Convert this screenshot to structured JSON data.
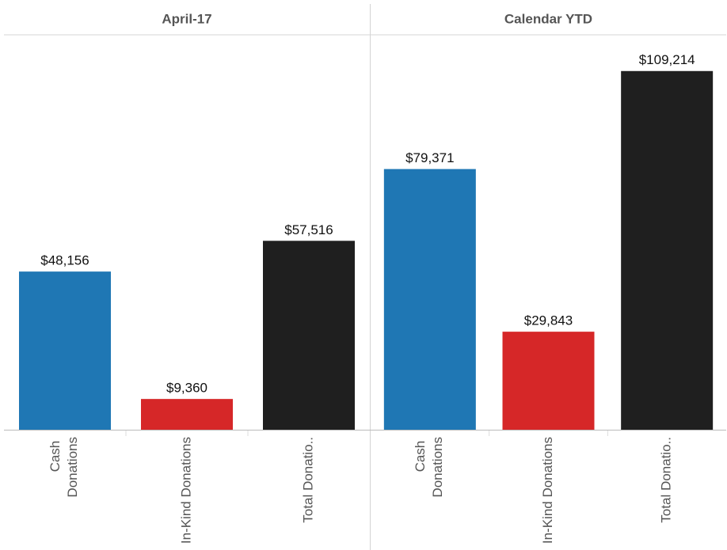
{
  "chart_data": [
    {
      "type": "bar",
      "title": "April-17",
      "categories": [
        "Cash Donations",
        "In-Kind Donations",
        "Total Donatio.."
      ],
      "values": [
        48156,
        9360,
        57516
      ],
      "value_labels": [
        "$48,156",
        "$9,360",
        "$57,516"
      ],
      "colors": [
        "#1f77b4",
        "#d62728",
        "#1f1f1f"
      ],
      "ylim": [
        0,
        120000
      ]
    },
    {
      "type": "bar",
      "title": "Calendar YTD",
      "categories": [
        "Cash Donations",
        "In-Kind Donations",
        "Total Donatio.."
      ],
      "values": [
        79371,
        29843,
        109214
      ],
      "value_labels": [
        "$79,371",
        "$29,843",
        "$109,214"
      ],
      "colors": [
        "#1f77b4",
        "#d62728",
        "#1f1f1f"
      ],
      "ylim": [
        0,
        120000
      ]
    }
  ]
}
